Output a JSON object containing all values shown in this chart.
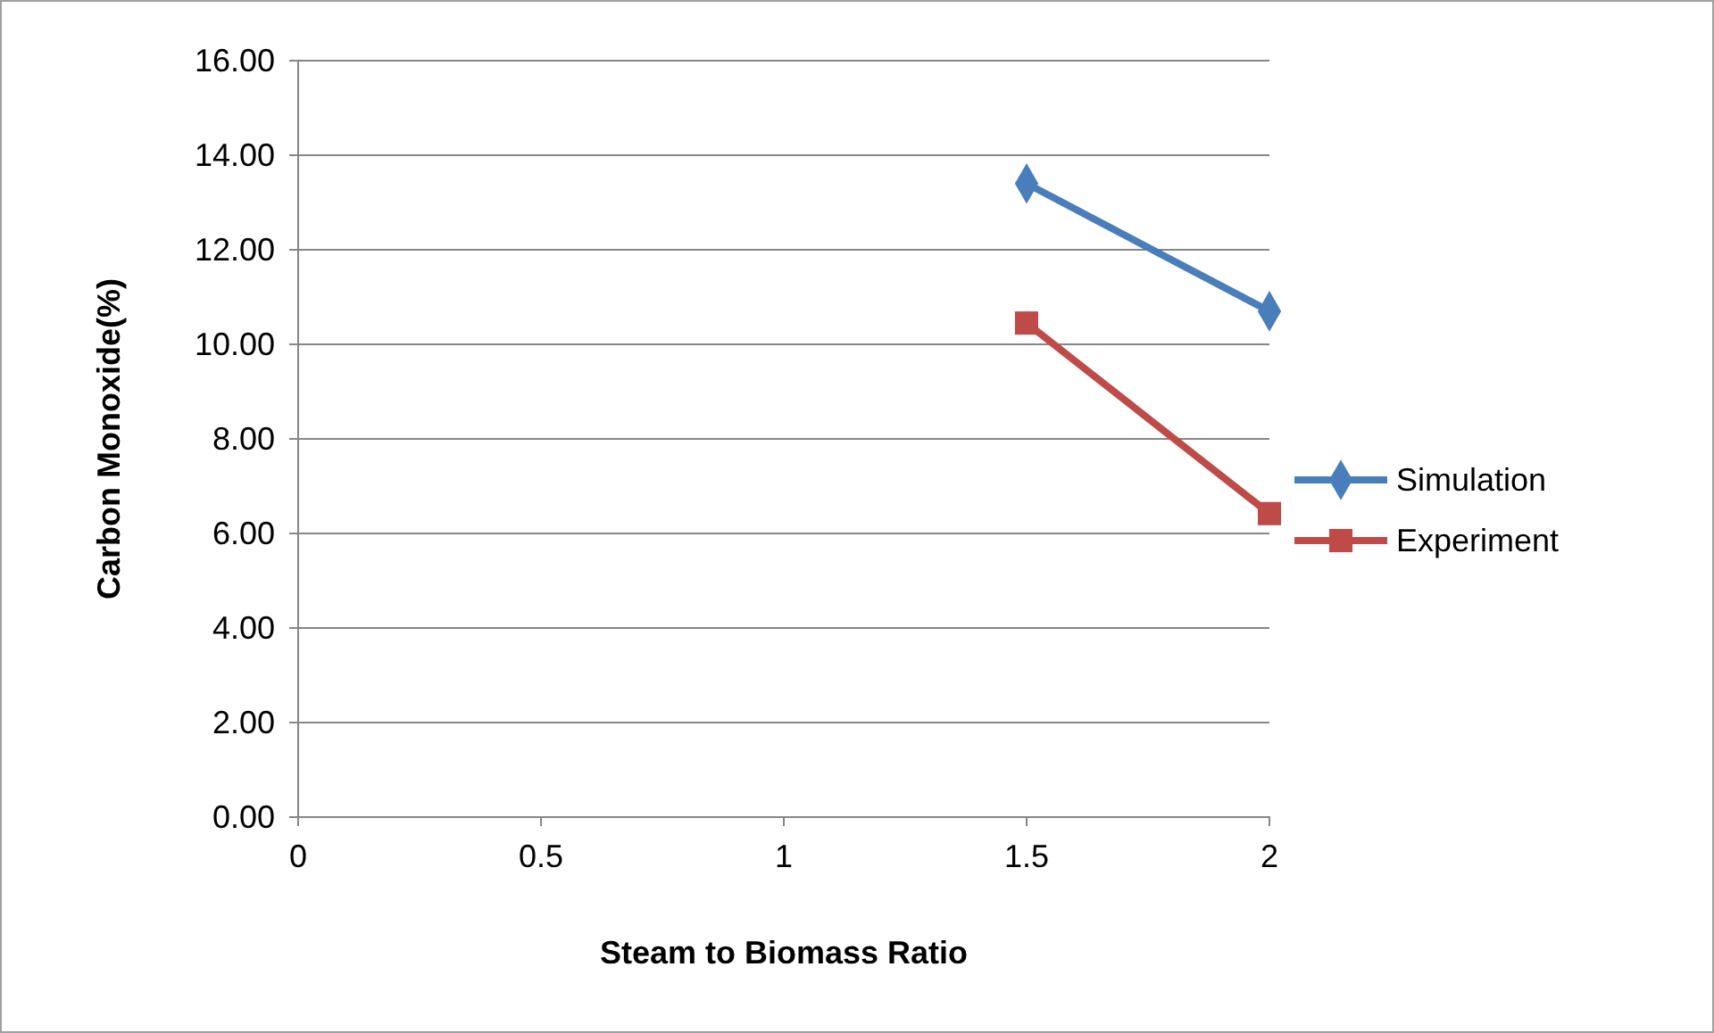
{
  "chart_data": {
    "type": "line",
    "xlabel": "Steam to Biomass Ratio",
    "ylabel": "Carbon Monoxide(%)",
    "x": [
      1.5,
      2
    ],
    "series": [
      {
        "name": "Simulation",
        "color": "#4a7ebb",
        "marker": "diamond",
        "values": [
          13.4,
          10.7
        ]
      },
      {
        "name": "Experiment",
        "color": "#be4b48",
        "marker": "square",
        "values": [
          10.45,
          6.42
        ]
      }
    ],
    "xlim": [
      0,
      2
    ],
    "xticks": [
      0,
      0.5,
      1,
      1.5,
      2
    ],
    "ylim": [
      0,
      16
    ],
    "yticks": [
      {
        "value": 0,
        "label": "0.00"
      },
      {
        "value": 2,
        "label": "2.00"
      },
      {
        "value": 4,
        "label": "4.00"
      },
      {
        "value": 6,
        "label": "6.00"
      },
      {
        "value": 8,
        "label": "8.00"
      },
      {
        "value": 10,
        "label": "10.00"
      },
      {
        "value": 12,
        "label": "12.00"
      },
      {
        "value": 14,
        "label": "14.00"
      },
      {
        "value": 16,
        "label": "16.00"
      }
    ],
    "grid": "y",
    "legend": "right",
    "line_style": "solid"
  }
}
